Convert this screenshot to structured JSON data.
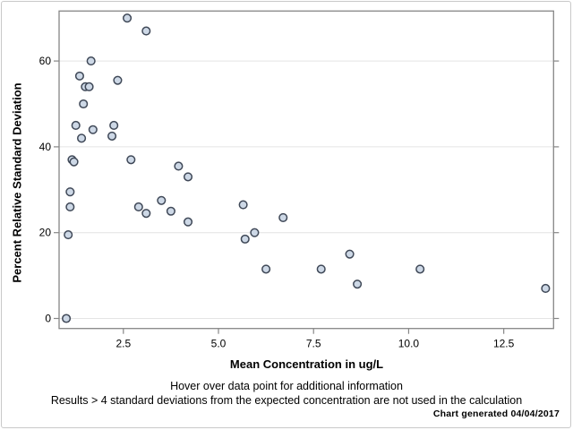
{
  "figure": {
    "background": "#ffffff",
    "outer_border_color": "#c9c9c9"
  },
  "chart_data": {
    "type": "scatter",
    "title": "",
    "xlabel": "Mean Concentration in ug/L",
    "ylabel": "Percent Relative Standard Deviation",
    "xlim": [
      0.81,
      13.81
    ],
    "ylim": [
      -2.34,
      71.65
    ],
    "x_ticks": [
      2.5,
      5.0,
      7.5,
      10.0,
      12.5
    ],
    "x_tick_labels": [
      "2.5",
      "5.0",
      "7.5",
      "10.0",
      "12.5"
    ],
    "y_ticks": [
      0,
      20,
      40,
      60
    ],
    "y_tick_labels": [
      "0",
      "20",
      "40",
      "60"
    ],
    "grid": "horizontal-only",
    "legend": "none",
    "points": [
      [
        1.0,
        0
      ],
      [
        1.05,
        19.5
      ],
      [
        1.1,
        26
      ],
      [
        1.1,
        29.5
      ],
      [
        1.15,
        37
      ],
      [
        1.2,
        36.5
      ],
      [
        1.25,
        45
      ],
      [
        1.35,
        56.5
      ],
      [
        1.4,
        42
      ],
      [
        1.45,
        50
      ],
      [
        1.5,
        54
      ],
      [
        1.6,
        54
      ],
      [
        1.65,
        60
      ],
      [
        1.7,
        44
      ],
      [
        2.2,
        42.5
      ],
      [
        2.25,
        45
      ],
      [
        2.35,
        55.5
      ],
      [
        2.6,
        70
      ],
      [
        2.7,
        37
      ],
      [
        2.9,
        26
      ],
      [
        3.1,
        67
      ],
      [
        3.1,
        24.5
      ],
      [
        3.5,
        27.5
      ],
      [
        3.75,
        25
      ],
      [
        3.95,
        35.5
      ],
      [
        4.2,
        33
      ],
      [
        4.2,
        22.5
      ],
      [
        5.65,
        26.5
      ],
      [
        5.7,
        18.5
      ],
      [
        5.95,
        20
      ],
      [
        6.25,
        11.5
      ],
      [
        6.7,
        23.5
      ],
      [
        7.7,
        11.5
      ],
      [
        8.45,
        15
      ],
      [
        8.65,
        8
      ],
      [
        10.3,
        11.5
      ],
      [
        13.6,
        7
      ]
    ],
    "marker": {
      "shape": "circle",
      "radius": 4.3,
      "fill": "#cdd8e6",
      "stroke": "#3f4857",
      "stroke_width": 1.5
    },
    "colors": {
      "wall_border": "#868686",
      "gridline": "#e4e4e4",
      "tick": "#868686",
      "tick_label": "#000000"
    }
  },
  "footnotes": {
    "line1": "Hover over data point for additional information",
    "line2": "Results > 4 standard deviations from the expected concentration are not used in the calculation",
    "generated": "Chart generated 04/04/2017"
  }
}
